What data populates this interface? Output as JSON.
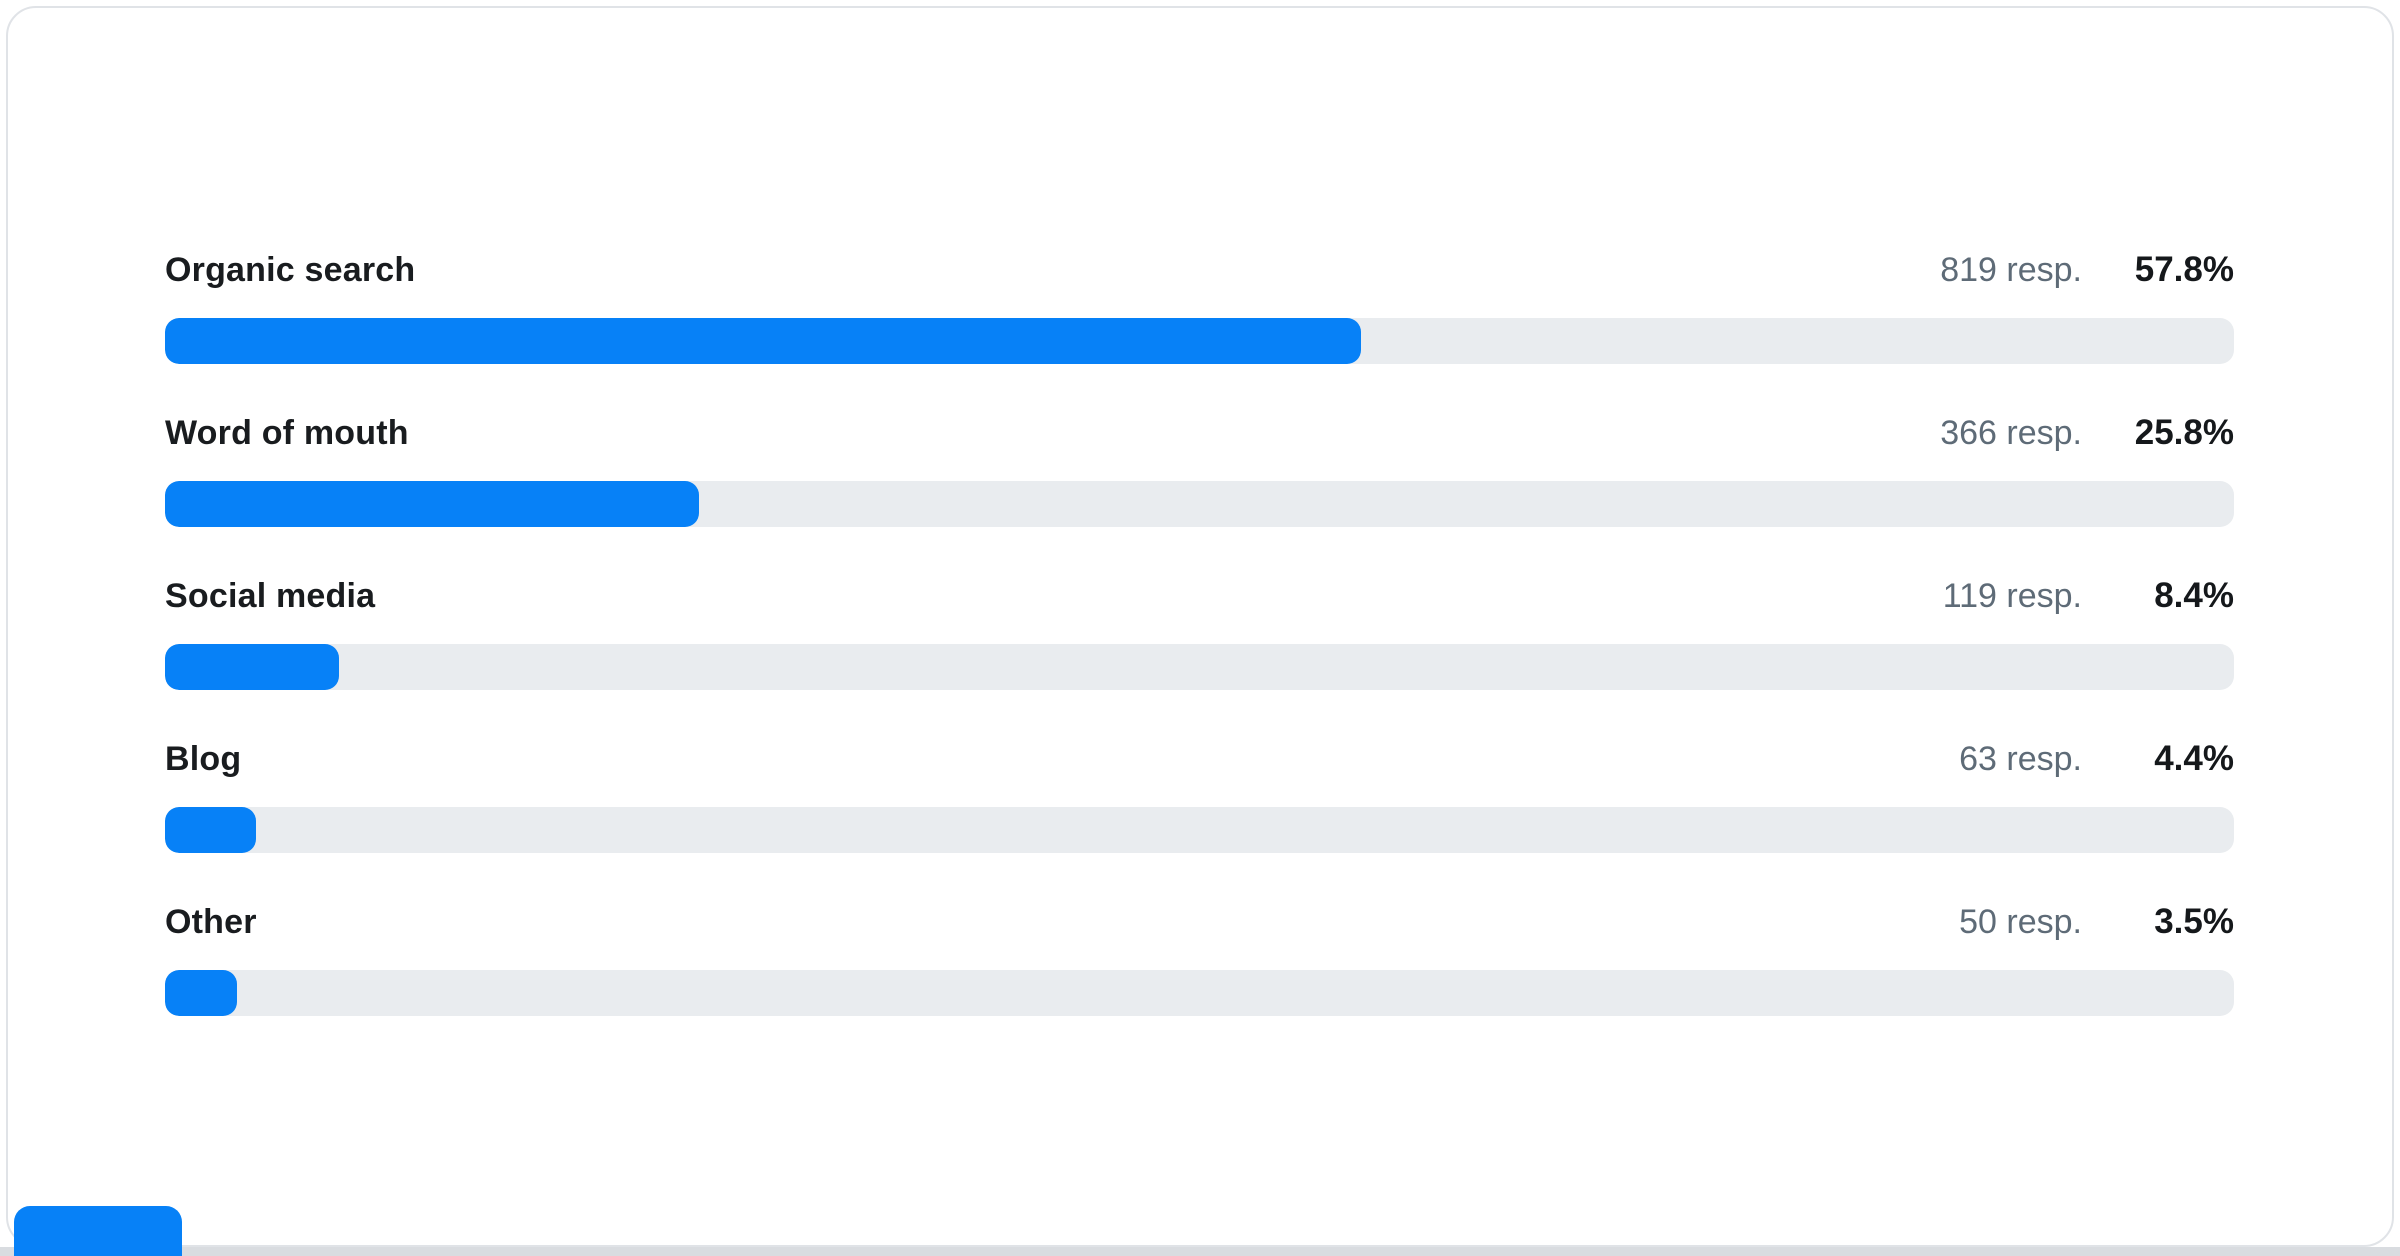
{
  "card": {
    "kind": "survey-results-progress-bars"
  },
  "colors": {
    "bar_fill": "#0781f7",
    "bar_track": "#e9ecef",
    "label_text": "#191c1f",
    "responses_text": "#5e6b77",
    "percent_text": "#15181b",
    "card_border": "#e0e3e7",
    "page_edge_strip": "#d9dce0"
  },
  "chart_data": {
    "type": "bar",
    "orientation": "horizontal",
    "title": "",
    "xlabel": "",
    "ylabel": "",
    "xlim": [
      0,
      100
    ],
    "grid": false,
    "legend": false,
    "categories": [
      "Organic search",
      "Word of mouth",
      "Social media",
      "Blog",
      "Other"
    ],
    "values": [
      57.8,
      25.8,
      8.4,
      4.4,
      3.5
    ],
    "responses": [
      819,
      366,
      119,
      63,
      50
    ],
    "rows": [
      {
        "label": "Organic search",
        "responses_text": "819 resp.",
        "percent_text": "57.8%",
        "percent": 57.8
      },
      {
        "label": "Word of mouth",
        "responses_text": "366 resp.",
        "percent_text": "25.8%",
        "percent": 25.8
      },
      {
        "label": "Social media",
        "responses_text": "119 resp.",
        "percent_text": "8.4%",
        "percent": 8.4
      },
      {
        "label": "Blog",
        "responses_text": "63 resp.",
        "percent_text": "4.4%",
        "percent": 4.4
      },
      {
        "label": "Other",
        "responses_text": "50 resp.",
        "percent_text": "3.5%",
        "percent": 3.5
      }
    ],
    "partial_next_bar_visible": true
  }
}
